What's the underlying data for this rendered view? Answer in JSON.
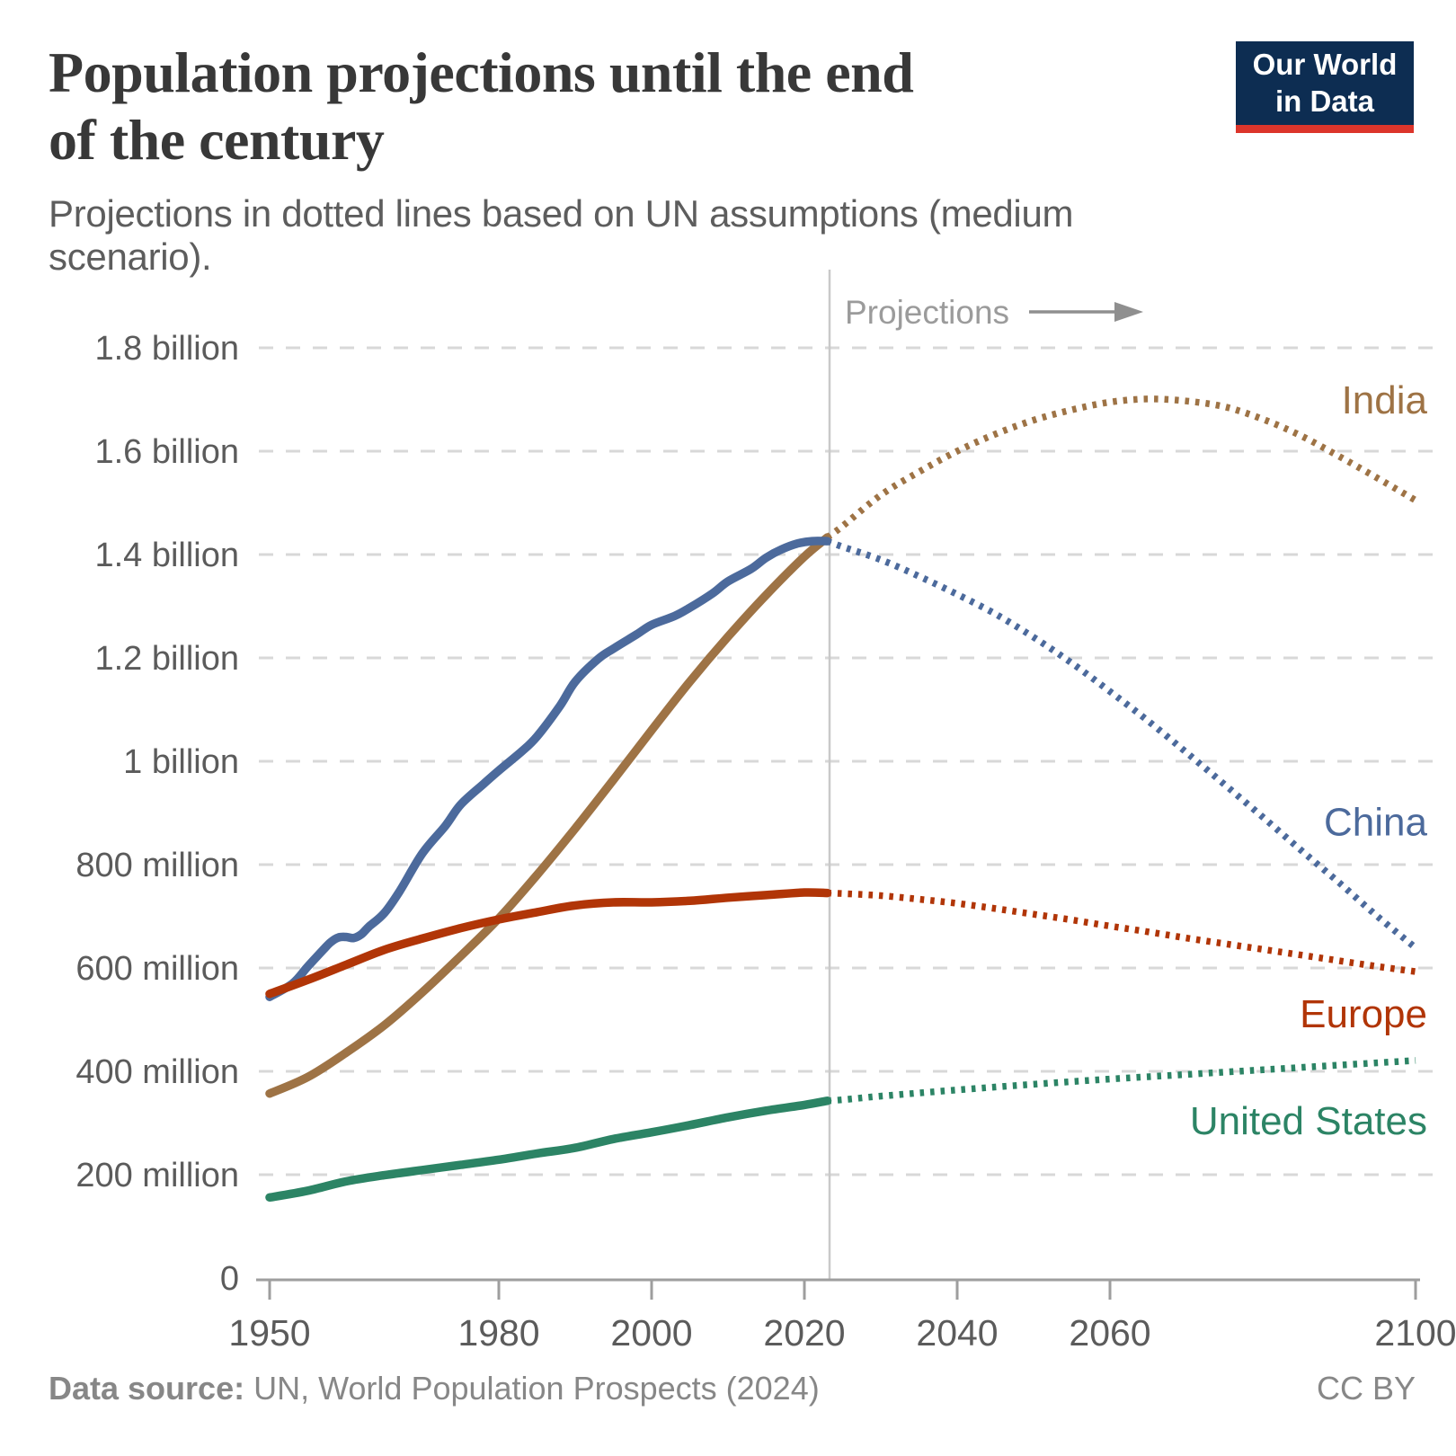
{
  "header": {
    "title": "Population projections until the end\nof the century",
    "subtitle": "Projections in dotted lines based on UN assumptions (medium scenario).",
    "logo": {
      "line1": "Our World",
      "line2": "in Data",
      "bg": "#0d2d52",
      "stripe": "#dc352b"
    }
  },
  "chart_data": {
    "type": "line",
    "title": "Population projections until the end of the century",
    "subtitle": "Projections in dotted lines based on UN assumptions (medium scenario).",
    "unit": "millions of people",
    "grid": true,
    "legend_position": "right-edge-labels",
    "annotation": {
      "projections_label": "Projections"
    },
    "divider_year": 2023,
    "x_axis": {
      "ticks": [
        1950,
        1980,
        2000,
        2020,
        2040,
        2060,
        2100
      ],
      "range": [
        1948,
        2101
      ]
    },
    "y_axis": {
      "range": [
        0,
        1870
      ],
      "ticks": [
        {
          "value": 1800,
          "label": "1.8 billion"
        },
        {
          "value": 1600,
          "label": "1.6 billion"
        },
        {
          "value": 1400,
          "label": "1.4 billion"
        },
        {
          "value": 1200,
          "label": "1.2 billion"
        },
        {
          "value": 1000,
          "label": "1 billion"
        },
        {
          "value": 800,
          "label": "800 million"
        },
        {
          "value": 600,
          "label": "600 million"
        },
        {
          "value": 400,
          "label": "400 million"
        },
        {
          "value": 200,
          "label": "200 million"
        },
        {
          "value": 0,
          "label": "0"
        }
      ]
    },
    "series": [
      {
        "name": "India",
        "color": "#9E7345",
        "label_value": 1699,
        "history": [
          [
            1950,
            357
          ],
          [
            1955,
            389
          ],
          [
            1960,
            436
          ],
          [
            1965,
            489
          ],
          [
            1970,
            553
          ],
          [
            1975,
            623
          ],
          [
            1980,
            696
          ],
          [
            1985,
            780
          ],
          [
            1990,
            870
          ],
          [
            1995,
            964
          ],
          [
            2000,
            1060
          ],
          [
            2005,
            1154
          ],
          [
            2010,
            1241
          ],
          [
            2015,
            1322
          ],
          [
            2020,
            1396
          ],
          [
            2023,
            1433
          ]
        ],
        "projection": [
          [
            2025,
            1455
          ],
          [
            2030,
            1515
          ],
          [
            2035,
            1560
          ],
          [
            2040,
            1600
          ],
          [
            2045,
            1633
          ],
          [
            2050,
            1660
          ],
          [
            2055,
            1680
          ],
          [
            2060,
            1695
          ],
          [
            2065,
            1701
          ],
          [
            2070,
            1697
          ],
          [
            2075,
            1686
          ],
          [
            2080,
            1662
          ],
          [
            2085,
            1630
          ],
          [
            2090,
            1590
          ],
          [
            2095,
            1548
          ],
          [
            2100,
            1505
          ]
        ]
      },
      {
        "name": "China",
        "color": "#4C6A9C",
        "label_value": 883,
        "history": [
          [
            1950,
            544
          ],
          [
            1953,
            570
          ],
          [
            1955,
            603
          ],
          [
            1957,
            635
          ],
          [
            1958,
            650
          ],
          [
            1959,
            659
          ],
          [
            1960,
            660
          ],
          [
            1961,
            658
          ],
          [
            1962,
            665
          ],
          [
            1963,
            680
          ],
          [
            1965,
            706
          ],
          [
            1967,
            748
          ],
          [
            1970,
            822
          ],
          [
            1973,
            875
          ],
          [
            1975,
            916
          ],
          [
            1978,
            956
          ],
          [
            1980,
            982
          ],
          [
            1983,
            1019
          ],
          [
            1985,
            1048
          ],
          [
            1988,
            1107
          ],
          [
            1990,
            1154
          ],
          [
            1993,
            1198
          ],
          [
            1995,
            1218
          ],
          [
            1998,
            1245
          ],
          [
            2000,
            1264
          ],
          [
            2003,
            1281
          ],
          [
            2005,
            1297
          ],
          [
            2008,
            1325
          ],
          [
            2010,
            1348
          ],
          [
            2013,
            1372
          ],
          [
            2015,
            1394
          ],
          [
            2017,
            1410
          ],
          [
            2019,
            1421
          ],
          [
            2021,
            1426
          ],
          [
            2023,
            1426
          ]
        ],
        "projection": [
          [
            2025,
            1415
          ],
          [
            2030,
            1390
          ],
          [
            2035,
            1358
          ],
          [
            2040,
            1323
          ],
          [
            2045,
            1285
          ],
          [
            2050,
            1240
          ],
          [
            2055,
            1190
          ],
          [
            2060,
            1135
          ],
          [
            2065,
            1078
          ],
          [
            2070,
            1017
          ],
          [
            2075,
            955
          ],
          [
            2080,
            892
          ],
          [
            2085,
            828
          ],
          [
            2090,
            765
          ],
          [
            2095,
            700
          ],
          [
            2100,
            639
          ]
        ]
      },
      {
        "name": "Europe",
        "color": "#B13507",
        "label_value": 511,
        "history": [
          [
            1950,
            550
          ],
          [
            1955,
            577
          ],
          [
            1960,
            606
          ],
          [
            1965,
            635
          ],
          [
            1970,
            657
          ],
          [
            1975,
            677
          ],
          [
            1980,
            694
          ],
          [
            1985,
            708
          ],
          [
            1990,
            721
          ],
          [
            1995,
            727
          ],
          [
            2000,
            727
          ],
          [
            2005,
            730
          ],
          [
            2010,
            736
          ],
          [
            2015,
            741
          ],
          [
            2020,
            746
          ],
          [
            2023,
            745
          ]
        ],
        "projection": [
          [
            2025,
            744
          ],
          [
            2030,
            740
          ],
          [
            2035,
            733
          ],
          [
            2040,
            725
          ],
          [
            2045,
            715
          ],
          [
            2050,
            704
          ],
          [
            2055,
            693
          ],
          [
            2060,
            681
          ],
          [
            2065,
            670
          ],
          [
            2070,
            658
          ],
          [
            2075,
            647
          ],
          [
            2080,
            636
          ],
          [
            2085,
            625
          ],
          [
            2090,
            614
          ],
          [
            2095,
            603
          ],
          [
            2100,
            593
          ]
        ]
      },
      {
        "name": "United States",
        "color": "#2C8465",
        "label_value": 304,
        "history": [
          [
            1950,
            156
          ],
          [
            1955,
            169
          ],
          [
            1960,
            187
          ],
          [
            1965,
            199
          ],
          [
            1970,
            209
          ],
          [
            1975,
            219
          ],
          [
            1980,
            229
          ],
          [
            1985,
            241
          ],
          [
            1990,
            252
          ],
          [
            1995,
            269
          ],
          [
            2000,
            282
          ],
          [
            2005,
            296
          ],
          [
            2010,
            311
          ],
          [
            2015,
            324
          ],
          [
            2020,
            335
          ],
          [
            2023,
            343
          ]
        ],
        "projection": [
          [
            2025,
            345
          ],
          [
            2030,
            352
          ],
          [
            2040,
            364
          ],
          [
            2050,
            375
          ],
          [
            2060,
            385
          ],
          [
            2070,
            394
          ],
          [
            2080,
            403
          ],
          [
            2090,
            412
          ],
          [
            2100,
            421
          ]
        ]
      }
    ]
  },
  "footer": {
    "datasource_prefix": "Data source:",
    "datasource_text": " UN, World Population Prospects (2024)",
    "license": "CC BY"
  }
}
